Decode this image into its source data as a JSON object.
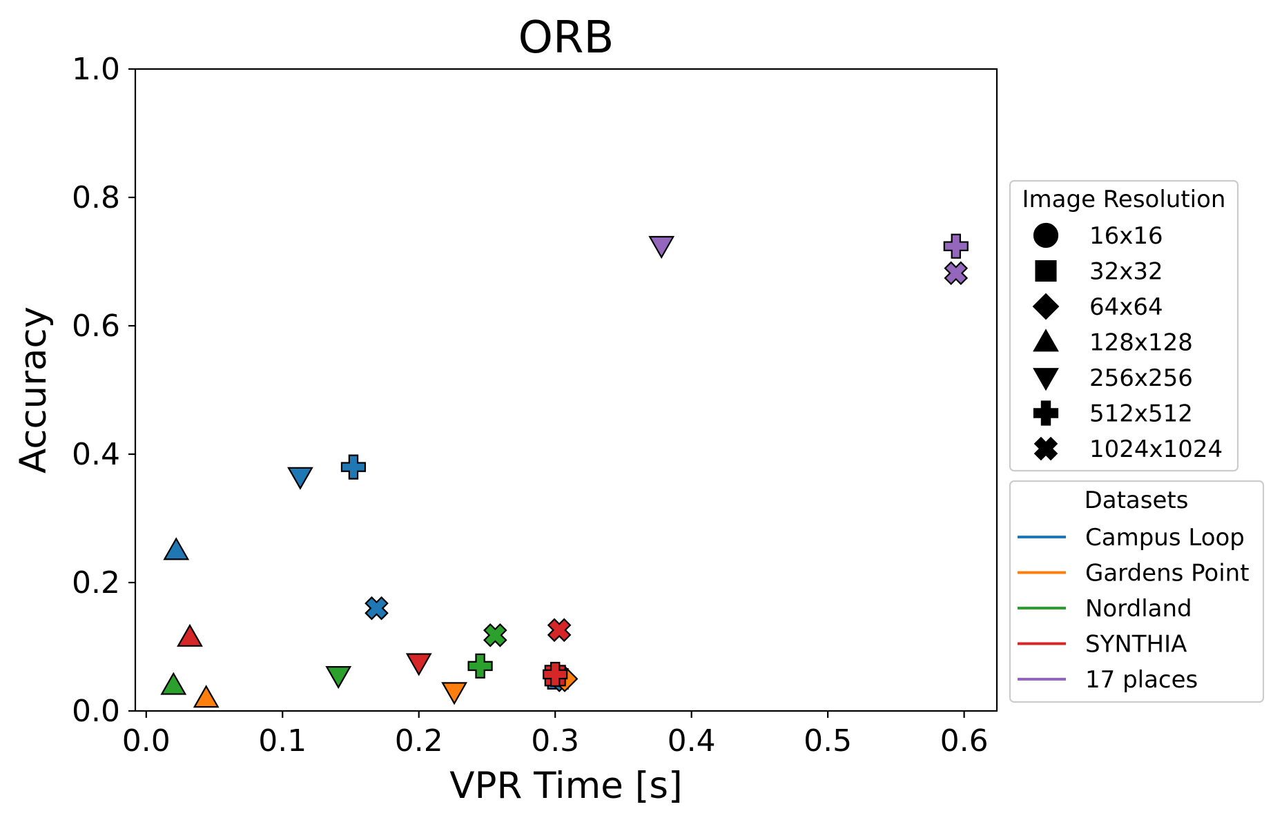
{
  "chart_data": {
    "type": "scatter",
    "title": "ORB",
    "xlabel": "VPR Time [s]",
    "ylabel": "Accuracy",
    "xlim": [
      -0.008,
      0.624
    ],
    "ylim": [
      0.0,
      1.0
    ],
    "xticks": [
      "0.0",
      "0.1",
      "0.2",
      "0.3",
      "0.4",
      "0.5",
      "0.6"
    ],
    "xtick_values": [
      0.0,
      0.1,
      0.2,
      0.3,
      0.4,
      0.5,
      0.6
    ],
    "yticks": [
      "0.0",
      "0.2",
      "0.4",
      "0.6",
      "0.8",
      "1.0"
    ],
    "ytick_values": [
      0.0,
      0.2,
      0.4,
      0.6,
      0.8,
      1.0
    ],
    "grid": false,
    "legend_resolution": {
      "title": "Image Resolution",
      "position": "right",
      "entries": [
        {
          "label": "16x16",
          "marker": "circle"
        },
        {
          "label": "32x32",
          "marker": "square"
        },
        {
          "label": "64x64",
          "marker": "diamond"
        },
        {
          "label": "128x128",
          "marker": "triangle-up"
        },
        {
          "label": "256x256",
          "marker": "triangle-down"
        },
        {
          "label": "512x512",
          "marker": "plus"
        },
        {
          "label": "1024x1024",
          "marker": "x"
        }
      ]
    },
    "legend_datasets": {
      "title": "Datasets",
      "position": "right",
      "entries": [
        {
          "label": "Campus Loop",
          "color": "#1f77b4"
        },
        {
          "label": "Gardens Point",
          "color": "#ff7f0e"
        },
        {
          "label": "Nordland",
          "color": "#2ca02c"
        },
        {
          "label": "SYNTHIA",
          "color": "#d62728"
        },
        {
          "label": "17 places",
          "color": "#9467bd"
        }
      ]
    },
    "series": [
      {
        "dataset": "Campus Loop",
        "color": "#1f77b4",
        "points": [
          {
            "marker": "square",
            "x": 0.302,
            "y": 0.05
          },
          {
            "marker": "diamond",
            "x": 0.303,
            "y": 0.05
          },
          {
            "marker": "triangle-up",
            "x": 0.022,
            "y": 0.25
          },
          {
            "marker": "triangle-down",
            "x": 0.113,
            "y": 0.365
          },
          {
            "marker": "plus",
            "x": 0.152,
            "y": 0.38
          },
          {
            "marker": "x",
            "x": 0.169,
            "y": 0.16
          }
        ]
      },
      {
        "dataset": "Gardens Point",
        "color": "#ff7f0e",
        "points": [
          {
            "marker": "diamond",
            "x": 0.307,
            "y": 0.05
          },
          {
            "marker": "triangle-up",
            "x": 0.044,
            "y": 0.02
          },
          {
            "marker": "triangle-down",
            "x": 0.226,
            "y": 0.03
          }
        ]
      },
      {
        "dataset": "Nordland",
        "color": "#2ca02c",
        "points": [
          {
            "marker": "triangle-up",
            "x": 0.02,
            "y": 0.04
          },
          {
            "marker": "triangle-down",
            "x": 0.141,
            "y": 0.055
          },
          {
            "marker": "plus",
            "x": 0.245,
            "y": 0.07
          },
          {
            "marker": "x",
            "x": 0.256,
            "y": 0.118
          }
        ]
      },
      {
        "dataset": "SYNTHIA",
        "color": "#d62728",
        "points": [
          {
            "marker": "square",
            "x": 0.3,
            "y": 0.055
          },
          {
            "marker": "triangle-up",
            "x": 0.032,
            "y": 0.115
          },
          {
            "marker": "triangle-down",
            "x": 0.2,
            "y": 0.075
          },
          {
            "marker": "plus",
            "x": 0.3,
            "y": 0.057
          },
          {
            "marker": "x",
            "x": 0.303,
            "y": 0.126
          }
        ]
      },
      {
        "dataset": "17 places",
        "color": "#9467bd",
        "points": [
          {
            "marker": "triangle-down",
            "x": 0.378,
            "y": 0.725
          },
          {
            "marker": "plus",
            "x": 0.594,
            "y": 0.724
          },
          {
            "marker": "x",
            "x": 0.594,
            "y": 0.682
          }
        ]
      }
    ]
  }
}
